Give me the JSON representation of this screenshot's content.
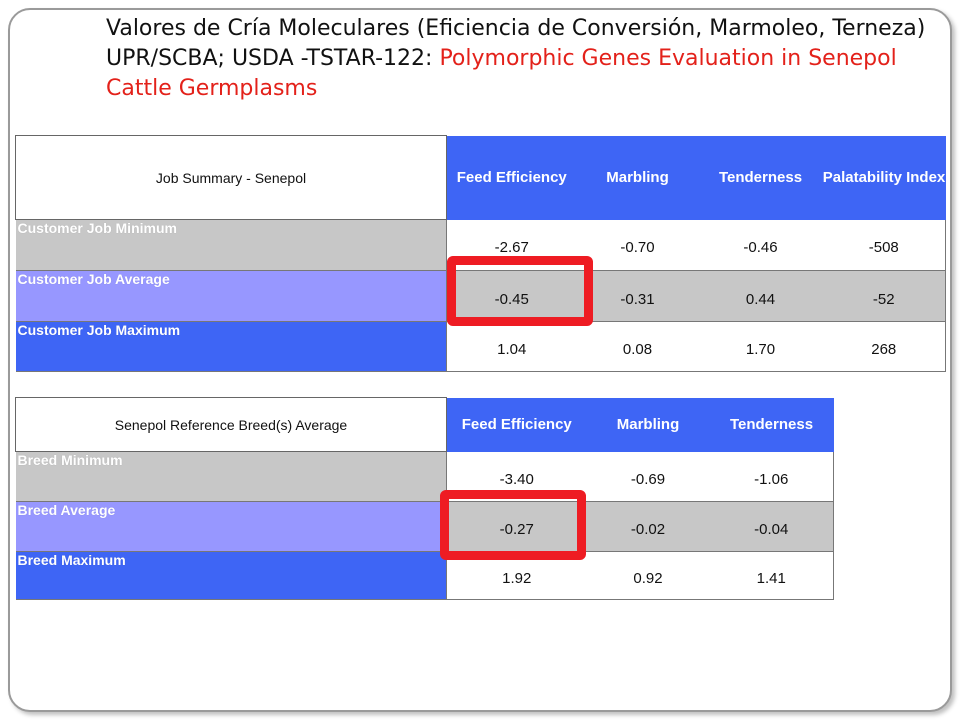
{
  "title": {
    "spanish": "Valores de Cría Moleculares (Eficiencia de Conversión, Marmoleo, Terneza) UPR/SCBA; USDA -TSTAR-122: ",
    "english": "Polymorphic  Genes Evaluation in Senepol Cattle Germplasms"
  },
  "colors": {
    "header_blue": "#3e65f5",
    "row_gray": "#c7c7c7",
    "row_lavender": "#9797ff",
    "highlight_red": "#ee1c23",
    "title_red": "#e3211a"
  },
  "job_summary": {
    "header_label": "Job Summary - Senepol",
    "columns": [
      "Feed Efficiency",
      "Marbling",
      "Tenderness",
      "Palatability Index"
    ],
    "rows": [
      {
        "label": "Customer Job Minimum",
        "values": [
          "-2.67",
          "-0.70",
          "-0.46",
          "-508"
        ]
      },
      {
        "label": "Customer Job Average",
        "values": [
          "-0.45",
          "-0.31",
          "0.44",
          "-52"
        ]
      },
      {
        "label": "Customer Job Maximum",
        "values": [
          "1.04",
          "0.08",
          "1.70",
          "268"
        ]
      }
    ]
  },
  "breed_reference": {
    "header_label": "Senepol Reference Breed(s) Average",
    "columns": [
      "Feed Efficiency",
      "Marbling",
      "Tenderness"
    ],
    "rows": [
      {
        "label": "Breed Minimum",
        "values": [
          "-3.40",
          "-0.69",
          "-1.06"
        ]
      },
      {
        "label": "Breed Average",
        "values": [
          "-0.27",
          "-0.02",
          "-0.04"
        ]
      },
      {
        "label": "Breed Maximum",
        "values": [
          "1.92",
          "0.92",
          "1.41"
        ]
      }
    ]
  }
}
